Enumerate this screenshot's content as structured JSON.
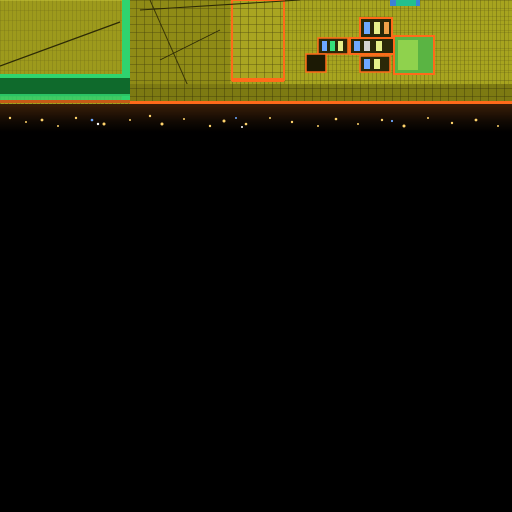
{
  "scene": {
    "description_kind": "photo",
    "colors": {
      "facade_base": "#a6a21e",
      "facade_dark": "#5f5c12",
      "accent_green": "#35e07a",
      "accent_orange": "#ff6a1a",
      "window_light": "#e7f08a",
      "background": "#000000",
      "city_light": "#ffd36b",
      "city_blue": "#6ea8ff"
    }
  }
}
